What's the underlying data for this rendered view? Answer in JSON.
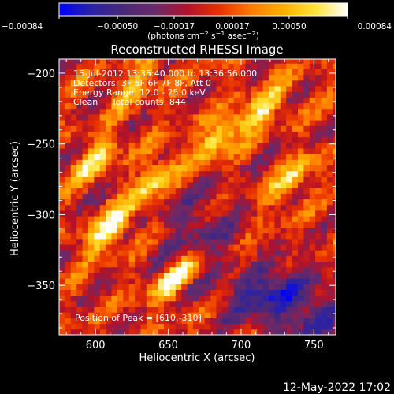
{
  "chart_data": {
    "type": "heatmap",
    "title": "Reconstructed RHESSI Image",
    "xlabel": "Heliocentric X (arcsec)",
    "ylabel": "Heliocentric Y (arcsec)",
    "xlim": [
      575,
      765
    ],
    "ylim": [
      -385,
      -190
    ],
    "x_ticks": [
      600,
      650,
      700,
      750
    ],
    "x_tick_labels": [
      "600",
      "650",
      "700",
      "750"
    ],
    "y_ticks": [
      -200,
      -250,
      -300,
      -350
    ],
    "y_tick_labels": [
      "−200",
      "−250",
      "−300",
      "−350"
    ],
    "grid": false,
    "colorbar": {
      "position": "top",
      "range": [
        -0.00084,
        0.00084
      ],
      "ticks": [
        -0.00084,
        -0.0005,
        -0.00017,
        0.00017,
        0.0005,
        0.00084
      ],
      "tick_labels": [
        "−0.00084",
        "−0.00050",
        "−0.00017",
        "0.00017",
        "0.00050",
        "0.00084"
      ],
      "units_main": "(photons cm",
      "units_sup1": "−2",
      "units_mid1": " s",
      "units_sup2": "−1",
      "units_mid2": " asec",
      "units_sup3": "−2",
      "units_end": ")"
    },
    "info_lines": [
      "15-Jul-2012 13:35:40.000 to 13:36:56.000",
      "Detectors: 3F 5F 6F 7F 8F, Att 0",
      "Energy Range: 12.0 - 25.0 keV",
      "Clean     Total counts: 844"
    ],
    "peak_label": "Position of Peak = [610,-310]",
    "peak": {
      "x": 610,
      "y": -310
    },
    "bright_regions": [
      {
        "x": 610,
        "y": -310,
        "relative_intensity": 1.0
      },
      {
        "x": 655,
        "y": -345,
        "relative_intensity": 0.9
      },
      {
        "x": 640,
        "y": -275,
        "relative_intensity": 0.8
      },
      {
        "x": 685,
        "y": -245,
        "relative_intensity": 0.8
      },
      {
        "x": 715,
        "y": -225,
        "relative_intensity": 0.75
      },
      {
        "x": 600,
        "y": -260,
        "relative_intensity": 0.7
      },
      {
        "x": 735,
        "y": -275,
        "relative_intensity": 0.65
      },
      {
        "x": 705,
        "y": -335,
        "relative_intensity": 0.6
      },
      {
        "x": 630,
        "y": -205,
        "relative_intensity": 0.6
      }
    ],
    "faint_regions": [
      {
        "x": 710,
        "y": -350,
        "relative_intensity": -0.9
      },
      {
        "x": 750,
        "y": -370,
        "relative_intensity": -0.7
      },
      {
        "x": 670,
        "y": -310,
        "relative_intensity": -0.5
      }
    ],
    "colormap": [
      "#0000ff",
      "#2a22a6",
      "#4a2878",
      "#6a2a6a",
      "#b3112a",
      "#e83000",
      "#ff7b00",
      "#ffb000",
      "#ffe43a",
      "#ffffff"
    ]
  },
  "footer": {
    "timestamp": "12-May-2022 17:02"
  }
}
